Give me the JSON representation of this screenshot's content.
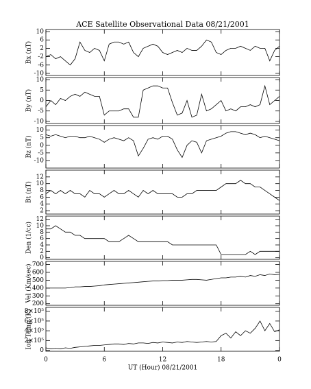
{
  "chart_data": [
    {
      "type": "line",
      "title": "ACE Satellite Observational Data  08/21/2001",
      "ylabel": "Bx (nT)",
      "x": [
        0,
        0.5,
        1,
        1.5,
        2,
        2.5,
        3,
        3.5,
        4,
        4.5,
        5,
        5.5,
        6,
        6.5,
        7,
        7.5,
        8,
        8.5,
        9,
        9.5,
        10,
        10.5,
        11,
        11.5,
        12,
        12.5,
        13,
        13.5,
        14,
        14.5,
        15,
        15.5,
        16,
        16.5,
        17,
        17.5,
        18,
        18.5,
        19,
        19.5,
        20,
        20.5,
        21,
        21.5,
        22,
        22.5,
        23,
        23.5,
        24
      ],
      "values": [
        -2,
        -1,
        -3,
        -2,
        -4,
        -6,
        -3,
        5,
        1,
        0,
        2,
        1,
        -4,
        4,
        5,
        5,
        4,
        5,
        0,
        -2,
        2,
        3,
        4,
        3,
        0,
        -1,
        0,
        1,
        0,
        2,
        1,
        1,
        3,
        6,
        5,
        0,
        -1,
        1,
        2,
        2,
        3,
        2,
        1,
        3,
        2,
        2,
        -4,
        1,
        3
      ],
      "color": "#000000",
      "xlim": [
        0,
        24
      ],
      "xticks": [
        0,
        6,
        12,
        18,
        {
          "value": 24,
          "label": "0"
        }
      ],
      "ylim": [
        -11,
        11
      ],
      "yticks": [
        10,
        6,
        2,
        -2,
        -6,
        -10
      ]
    },
    {
      "type": "line",
      "ylabel": "By (nT)",
      "x": [
        0,
        0.5,
        1,
        1.5,
        2,
        2.5,
        3,
        3.5,
        4,
        4.5,
        5,
        5.5,
        6,
        6.5,
        7,
        7.5,
        8,
        8.5,
        9,
        9.5,
        10,
        10.5,
        11,
        11.5,
        12,
        12.5,
        13,
        13.5,
        14,
        14.5,
        15,
        15.5,
        16,
        16.5,
        17,
        17.5,
        18,
        18.5,
        19,
        19.5,
        20,
        20.5,
        21,
        21.5,
        22,
        22.5,
        23,
        23.5,
        24
      ],
      "values": [
        -3,
        0,
        -2,
        1,
        0,
        2,
        3,
        2,
        4,
        3,
        2,
        2,
        -7,
        -5,
        -5,
        -5,
        -4,
        -4,
        -8,
        -8,
        5,
        6,
        7,
        7,
        6,
        6,
        -1,
        -7,
        -6,
        0,
        -8,
        -7,
        3,
        -5,
        -4,
        -2,
        0,
        -5,
        -4,
        -5,
        -3,
        -3,
        -2,
        -3,
        -2,
        7,
        -2,
        0,
        2
      ],
      "color": "#000000",
      "xlim": [
        0,
        24
      ],
      "xticks": [
        0,
        6,
        12,
        18,
        {
          "value": 24,
          "label": "0"
        }
      ],
      "ylim": [
        -11,
        11
      ],
      "yticks": [
        10,
        5,
        0,
        -5,
        -10
      ]
    },
    {
      "type": "line",
      "ylabel": "Bz (nT)",
      "x": [
        0,
        0.5,
        1,
        1.5,
        2,
        2.5,
        3,
        3.5,
        4,
        4.5,
        5,
        5.5,
        6,
        6.5,
        7,
        7.5,
        8,
        8.5,
        9,
        9.5,
        10,
        10.5,
        11,
        11.5,
        12,
        12.5,
        13,
        13.5,
        14,
        14.5,
        15,
        15.5,
        16,
        16.5,
        17,
        17.5,
        18,
        18.5,
        19,
        19.5,
        20,
        20.5,
        21,
        21.5,
        22,
        22.5,
        23,
        23.5,
        24
      ],
      "values": [
        7,
        6,
        7,
        6,
        5,
        6,
        6,
        5,
        5,
        6,
        5,
        4,
        2,
        4,
        5,
        4,
        3,
        5,
        3,
        -7,
        -2,
        4,
        5,
        4,
        6,
        6,
        4,
        -3,
        -8,
        0,
        3,
        2,
        -5,
        3,
        4,
        5,
        6,
        8,
        9,
        9,
        8,
        7,
        8,
        7,
        5,
        6,
        5,
        4,
        3
      ],
      "color": "#000000",
      "xlim": [
        0,
        24
      ],
      "xticks": [
        0,
        6,
        12,
        18,
        {
          "value": 24,
          "label": "0"
        }
      ],
      "ylim": [
        -15,
        13
      ],
      "yticks": [
        10,
        5,
        0,
        -5,
        -10
      ]
    },
    {
      "type": "line",
      "ylabel": "Bt (nT)",
      "x": [
        0,
        0.5,
        1,
        1.5,
        2,
        2.5,
        3,
        3.5,
        4,
        4.5,
        5,
        5.5,
        6,
        6.5,
        7,
        7.5,
        8,
        8.5,
        9,
        9.5,
        10,
        10.5,
        11,
        11.5,
        12,
        12.5,
        13,
        13.5,
        14,
        14.5,
        15,
        15.5,
        16,
        16.5,
        17,
        17.5,
        18,
        18.5,
        19,
        19.5,
        20,
        20.5,
        21,
        21.5,
        22,
        22.5,
        23,
        23.5,
        24
      ],
      "values": [
        7,
        8,
        7,
        8,
        7,
        8,
        7,
        7,
        6,
        8,
        7,
        7,
        6,
        7,
        8,
        7,
        7,
        8,
        7,
        6,
        8,
        7,
        8,
        7,
        7,
        7,
        7,
        6,
        6,
        7,
        7,
        8,
        8,
        8,
        8,
        8,
        9,
        10,
        10,
        10,
        11,
        10,
        10,
        9,
        9,
        8,
        7,
        6,
        5
      ],
      "color": "#000000",
      "xlim": [
        0,
        24
      ],
      "xticks": [
        0,
        6,
        12,
        18,
        {
          "value": 24,
          "label": "0"
        }
      ],
      "ylim": [
        1,
        14
      ],
      "yticks": [
        12,
        10,
        8,
        6,
        4,
        2
      ]
    },
    {
      "type": "line",
      "ylabel": "Den (1/cc)",
      "x": [
        0,
        0.5,
        1,
        1.5,
        2,
        2.5,
        3,
        3.5,
        4,
        4.5,
        5,
        5.5,
        6,
        6.5,
        7,
        7.5,
        8,
        8.5,
        9,
        9.5,
        10,
        10.5,
        11,
        11.5,
        12,
        12.5,
        13,
        13.5,
        14,
        14.5,
        15,
        15.5,
        16,
        16.5,
        17,
        17.5,
        18,
        18.5,
        19,
        19.5,
        20,
        20.5,
        21,
        21.5,
        22,
        22.5,
        23,
        23.5,
        24
      ],
      "values": [
        9,
        9,
        10,
        9,
        8,
        8,
        7,
        7,
        6,
        6,
        6,
        6,
        6,
        5,
        5,
        5,
        6,
        7,
        6,
        5,
        5,
        5,
        5,
        5,
        5,
        5,
        4,
        4,
        4,
        4,
        4,
        4,
        4,
        4,
        4,
        4,
        1,
        1,
        1,
        1,
        1,
        1,
        2,
        1,
        2,
        2,
        2,
        2,
        2
      ],
      "color": "#000000",
      "xlim": [
        0,
        24
      ],
      "xticks": [
        0,
        6,
        12,
        18,
        {
          "value": 24,
          "label": "0"
        }
      ],
      "ylim": [
        -0.5,
        13
      ],
      "yticks": [
        12,
        10,
        8,
        6,
        4,
        2,
        0
      ]
    },
    {
      "type": "line",
      "ylabel": "Vel (Km/sec)",
      "x": [
        0,
        0.5,
        1,
        1.5,
        2,
        2.5,
        3,
        3.5,
        4,
        4.5,
        5,
        5.5,
        6,
        6.5,
        7,
        7.5,
        8,
        8.5,
        9,
        9.5,
        10,
        10.5,
        11,
        11.5,
        12,
        12.5,
        13,
        13.5,
        14,
        14.5,
        15,
        15.5,
        16,
        16.5,
        17,
        17.5,
        18,
        18.5,
        19,
        19.5,
        20,
        20.5,
        21,
        21.5,
        22,
        22.5,
        23,
        23.5,
        24
      ],
      "values": [
        400,
        400,
        400,
        400,
        400,
        405,
        415,
        415,
        420,
        420,
        425,
        430,
        440,
        445,
        450,
        455,
        460,
        465,
        470,
        475,
        480,
        485,
        490,
        490,
        495,
        495,
        500,
        500,
        500,
        505,
        510,
        510,
        505,
        500,
        510,
        520,
        530,
        530,
        540,
        540,
        550,
        540,
        560,
        550,
        570,
        560,
        580,
        570,
        575
      ],
      "color": "#000000",
      "xlim": [
        0,
        24
      ],
      "xticks": [
        0,
        6,
        12,
        18,
        {
          "value": 24,
          "label": "0"
        }
      ],
      "ylim": [
        180,
        740
      ],
      "yticks": [
        700,
        600,
        500,
        400,
        300,
        200
      ]
    },
    {
      "type": "line",
      "ylabel": "Ion Temp (K)",
      "xlabel": "UT (Hour)  08/21/2001",
      "x": [
        0,
        0.5,
        1,
        1.5,
        2,
        2.5,
        3,
        3.5,
        4,
        4.5,
        5,
        5.5,
        6,
        6.5,
        7,
        7.5,
        8,
        8.5,
        9,
        9.5,
        10,
        10.5,
        11,
        11.5,
        12,
        12.5,
        13,
        13.5,
        14,
        14.5,
        15,
        15.5,
        16,
        16.5,
        17,
        17.5,
        18,
        18.5,
        19,
        19.5,
        20,
        20.5,
        21,
        21.5,
        22,
        22.5,
        23,
        23.5,
        24
      ],
      "values": [
        50000,
        30000,
        40000,
        30000,
        50000,
        40000,
        60000,
        70000,
        80000,
        90000,
        100000,
        100000,
        110000,
        120000,
        130000,
        130000,
        120000,
        140000,
        130000,
        150000,
        150000,
        140000,
        160000,
        150000,
        170000,
        160000,
        150000,
        170000,
        160000,
        180000,
        170000,
        160000,
        170000,
        180000,
        170000,
        180000,
        300000,
        350000,
        250000,
        380000,
        300000,
        400000,
        350000,
        450000,
        600000,
        400000,
        550000,
        380000,
        420000
      ],
      "color": "#000000",
      "xlim": [
        0,
        24
      ],
      "xticks": [
        0,
        6,
        12,
        18,
        {
          "value": 24,
          "label": "0"
        }
      ],
      "ylim": [
        -20000,
        880000
      ],
      "yticks": [
        0,
        {
          "value": 200000,
          "label": "2×10⁵"
        },
        {
          "value": 400000,
          "label": "4×10⁵"
        },
        {
          "value": 600000,
          "label": "6×10⁵"
        },
        {
          "value": 800000,
          "label": "8×10⁵"
        }
      ]
    }
  ]
}
